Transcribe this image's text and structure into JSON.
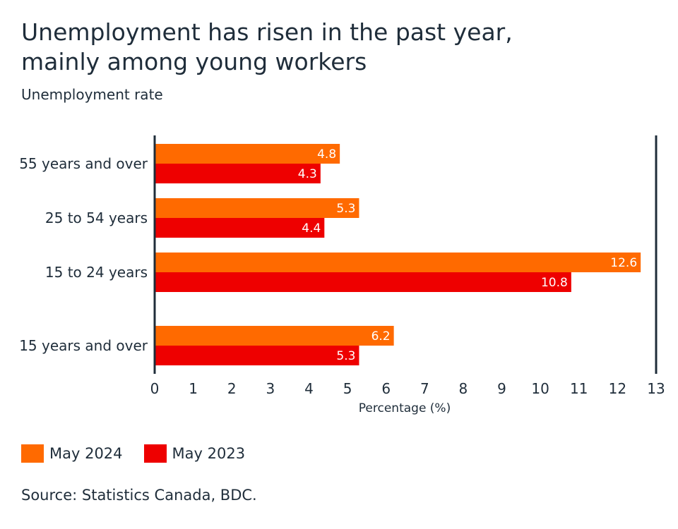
{
  "chart_data": {
    "type": "bar",
    "orientation": "horizontal",
    "title_line1": "Unemployment has risen in the past year,",
    "title_line2": "mainly among young workers",
    "subtitle": "Unemployment rate",
    "xlabel": "Percentage (%)",
    "ylabel": "",
    "xlim": [
      0,
      13
    ],
    "xticks": [
      "0",
      "1",
      "2",
      "3",
      "4",
      "5",
      "6",
      "7",
      "8",
      "9",
      "10",
      "11",
      "12",
      "13"
    ],
    "categories": [
      "55 years and over",
      "25 to 54 years",
      "15 to 24 years",
      "15 years and over"
    ],
    "series": [
      {
        "name": "May 2024",
        "color": "#ff6a00",
        "values": [
          4.8,
          5.3,
          12.6,
          6.2
        ]
      },
      {
        "name": "May 2023",
        "color": "#ee0000",
        "values": [
          4.3,
          4.4,
          10.8,
          5.3
        ]
      }
    ],
    "grid": false,
    "legend_position": "bottom-left"
  },
  "source": "Source: Statistics Canada, BDC."
}
